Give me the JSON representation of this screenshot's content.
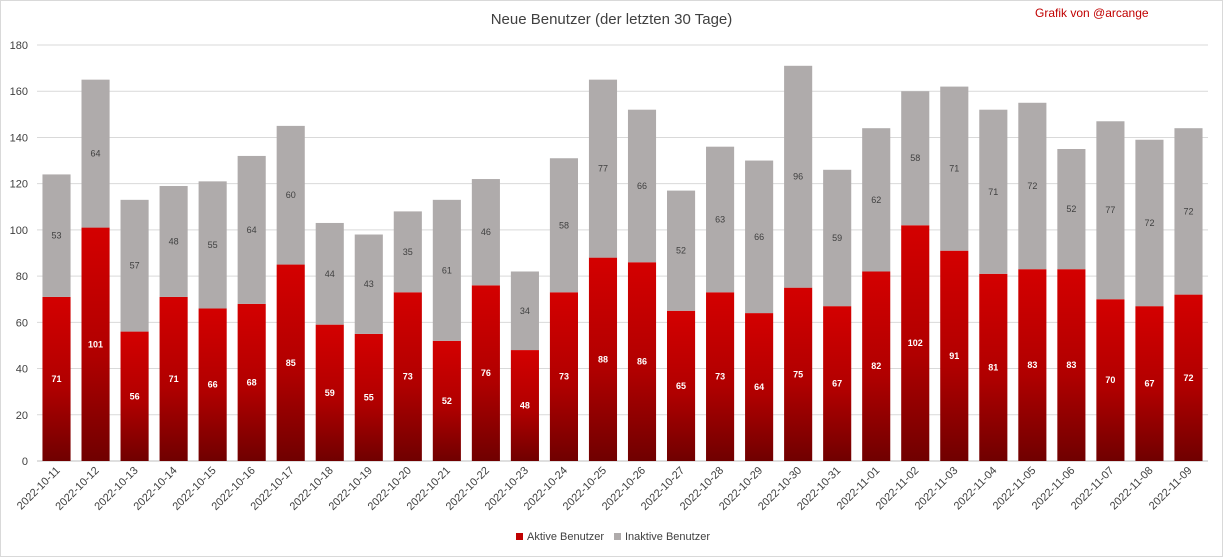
{
  "chart_data": {
    "type": "bar",
    "stacked": true,
    "title": "Neue Benutzer (der letzten 30 Tage)",
    "credit": "Grafik von @arcange",
    "categories": [
      "2022-10-11",
      "2022-10-12",
      "2022-10-13",
      "2022-10-14",
      "2022-10-15",
      "2022-10-16",
      "2022-10-17",
      "2022-10-18",
      "2022-10-19",
      "2022-10-20",
      "2022-10-21",
      "2022-10-22",
      "2022-10-23",
      "2022-10-24",
      "2022-10-25",
      "2022-10-26",
      "2022-10-27",
      "2022-10-28",
      "2022-10-29",
      "2022-10-30",
      "2022-10-31",
      "2022-11-01",
      "2022-11-02",
      "2022-11-03",
      "2022-11-04",
      "2022-11-05",
      "2022-11-06",
      "2022-11-07",
      "2022-11-08",
      "2022-11-09"
    ],
    "series": [
      {
        "name": "Aktive Benutzer",
        "color": "#c00000",
        "values": [
          71,
          101,
          56,
          71,
          66,
          68,
          85,
          59,
          55,
          73,
          52,
          76,
          48,
          73,
          88,
          86,
          65,
          73,
          64,
          75,
          67,
          82,
          102,
          91,
          81,
          83,
          83,
          70,
          67,
          72
        ]
      },
      {
        "name": "Inaktive Benutzer",
        "color": "#afabab",
        "values": [
          53,
          64,
          57,
          48,
          55,
          64,
          60,
          44,
          43,
          35,
          61,
          46,
          34,
          58,
          77,
          66,
          52,
          63,
          66,
          96,
          59,
          62,
          58,
          71,
          71,
          72,
          52,
          77,
          72,
          72
        ]
      }
    ],
    "ylim": [
      0,
      180
    ],
    "yticks": [
      0,
      20,
      40,
      60,
      80,
      100,
      120,
      140,
      160,
      180
    ],
    "grid": true,
    "legend_position": "bottom"
  }
}
